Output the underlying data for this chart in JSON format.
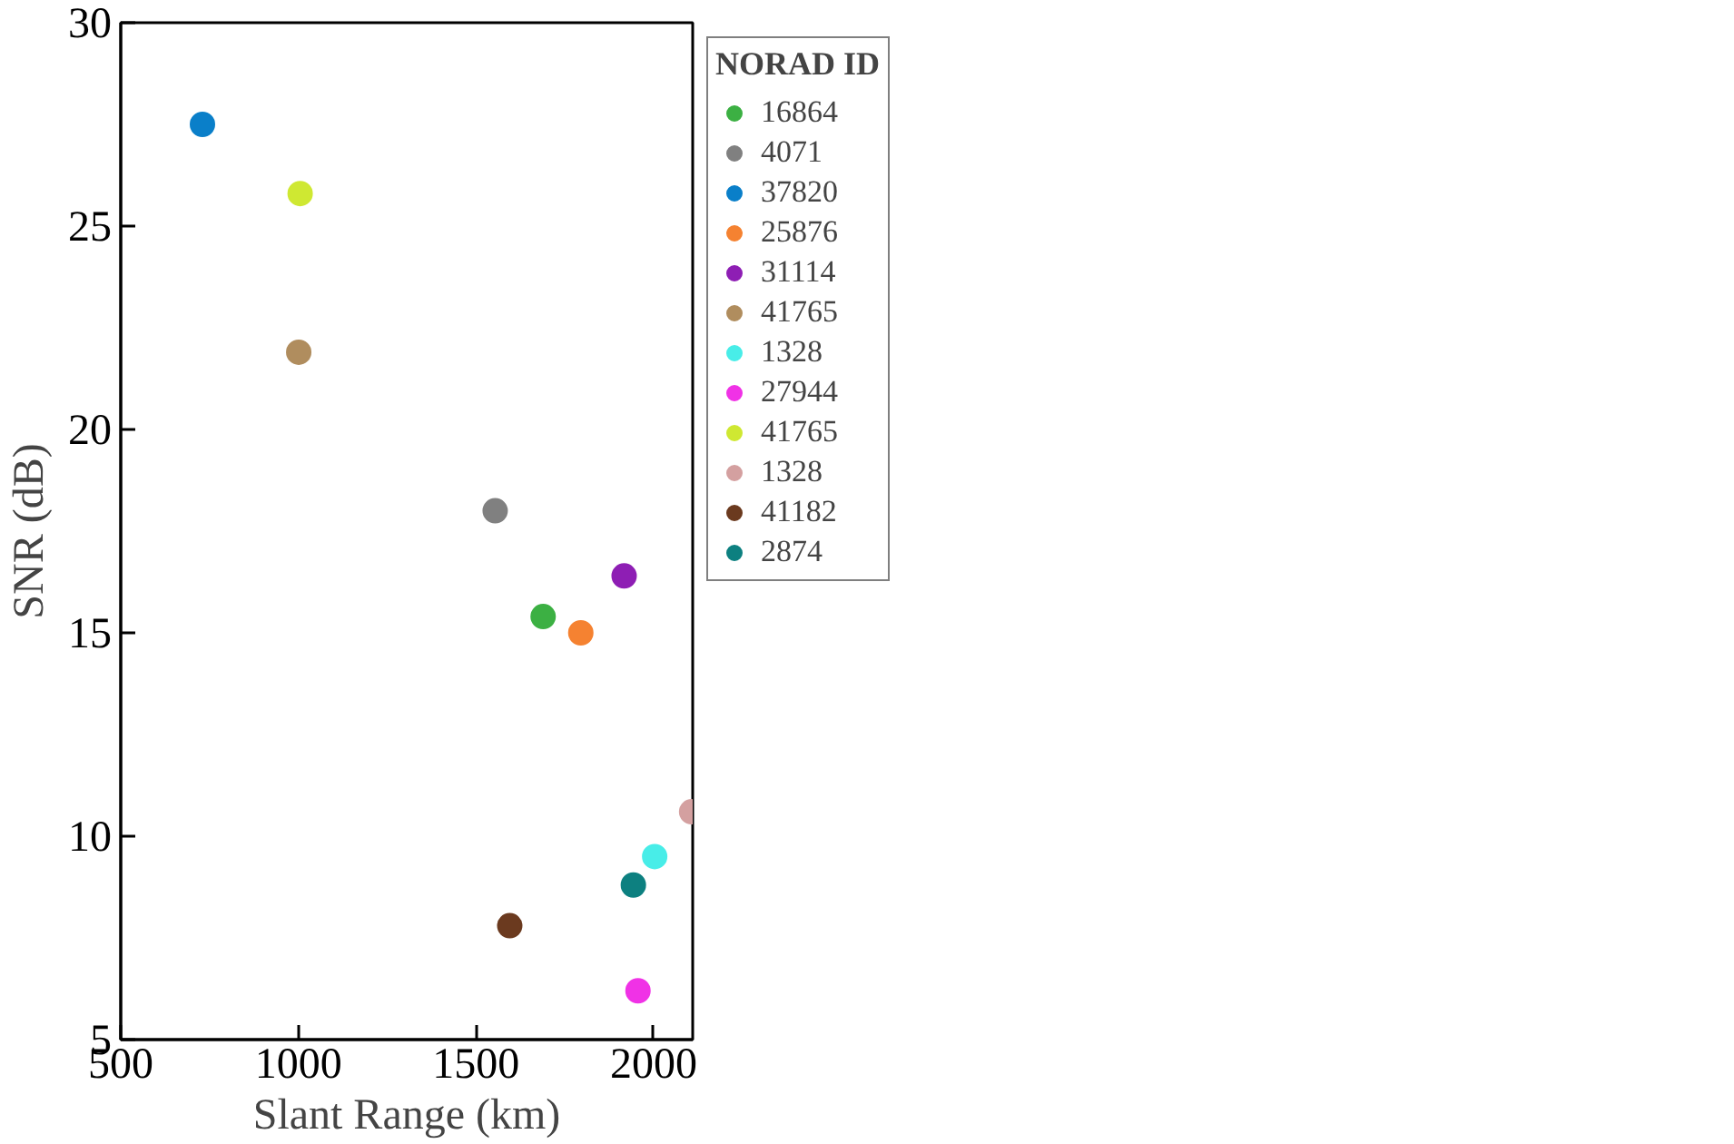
{
  "chart_data": {
    "type": "scatter",
    "xlabel": "Slant Range (km)",
    "ylabel": "SNR (dB)",
    "legend_title": "NORAD ID",
    "xlim": [
      500,
      2110
    ],
    "ylim": [
      5,
      30
    ],
    "xticks": [
      500,
      1000,
      1500,
      2000
    ],
    "yticks": [
      5,
      10,
      15,
      20,
      25,
      30
    ],
    "grid": false,
    "legend": "right",
    "marker": "circle",
    "series": [
      {
        "name": "16864",
        "color": "#3cb043",
        "x": [
          1689
        ],
        "values": [
          15.4
        ]
      },
      {
        "name": "4071",
        "color": "#808080",
        "x": [
          1554
        ],
        "values": [
          18.0
        ]
      },
      {
        "name": "37820",
        "color": "#0a7fc9",
        "x": [
          730
        ],
        "values": [
          27.5
        ]
      },
      {
        "name": "25876",
        "color": "#f58231",
        "x": [
          1795
        ],
        "values": [
          15.0
        ]
      },
      {
        "name": "31114",
        "color": "#8e1eb4",
        "x": [
          1917
        ],
        "values": [
          16.4
        ]
      },
      {
        "name": "41765",
        "color": "#b08d5e",
        "x": [
          1001
        ],
        "values": [
          21.9
        ]
      },
      {
        "name": "1328",
        "color": "#48ede8",
        "x": [
          2003
        ],
        "values": [
          9.5
        ]
      },
      {
        "name": "27944",
        "color": "#f032e6",
        "x": [
          1956
        ],
        "values": [
          6.2
        ]
      },
      {
        "name": "41765",
        "color": "#cfe832",
        "x": [
          1005
        ],
        "values": [
          25.8
        ]
      },
      {
        "name": "1328",
        "color": "#d4a0a0",
        "x": [
          2107
        ],
        "values": [
          10.6
        ]
      },
      {
        "name": "41182",
        "color": "#6b3a1f",
        "x": [
          1595
        ],
        "values": [
          7.8
        ]
      },
      {
        "name": "2874",
        "color": "#0d8080",
        "x": [
          1943
        ],
        "values": [
          8.8
        ]
      }
    ]
  }
}
